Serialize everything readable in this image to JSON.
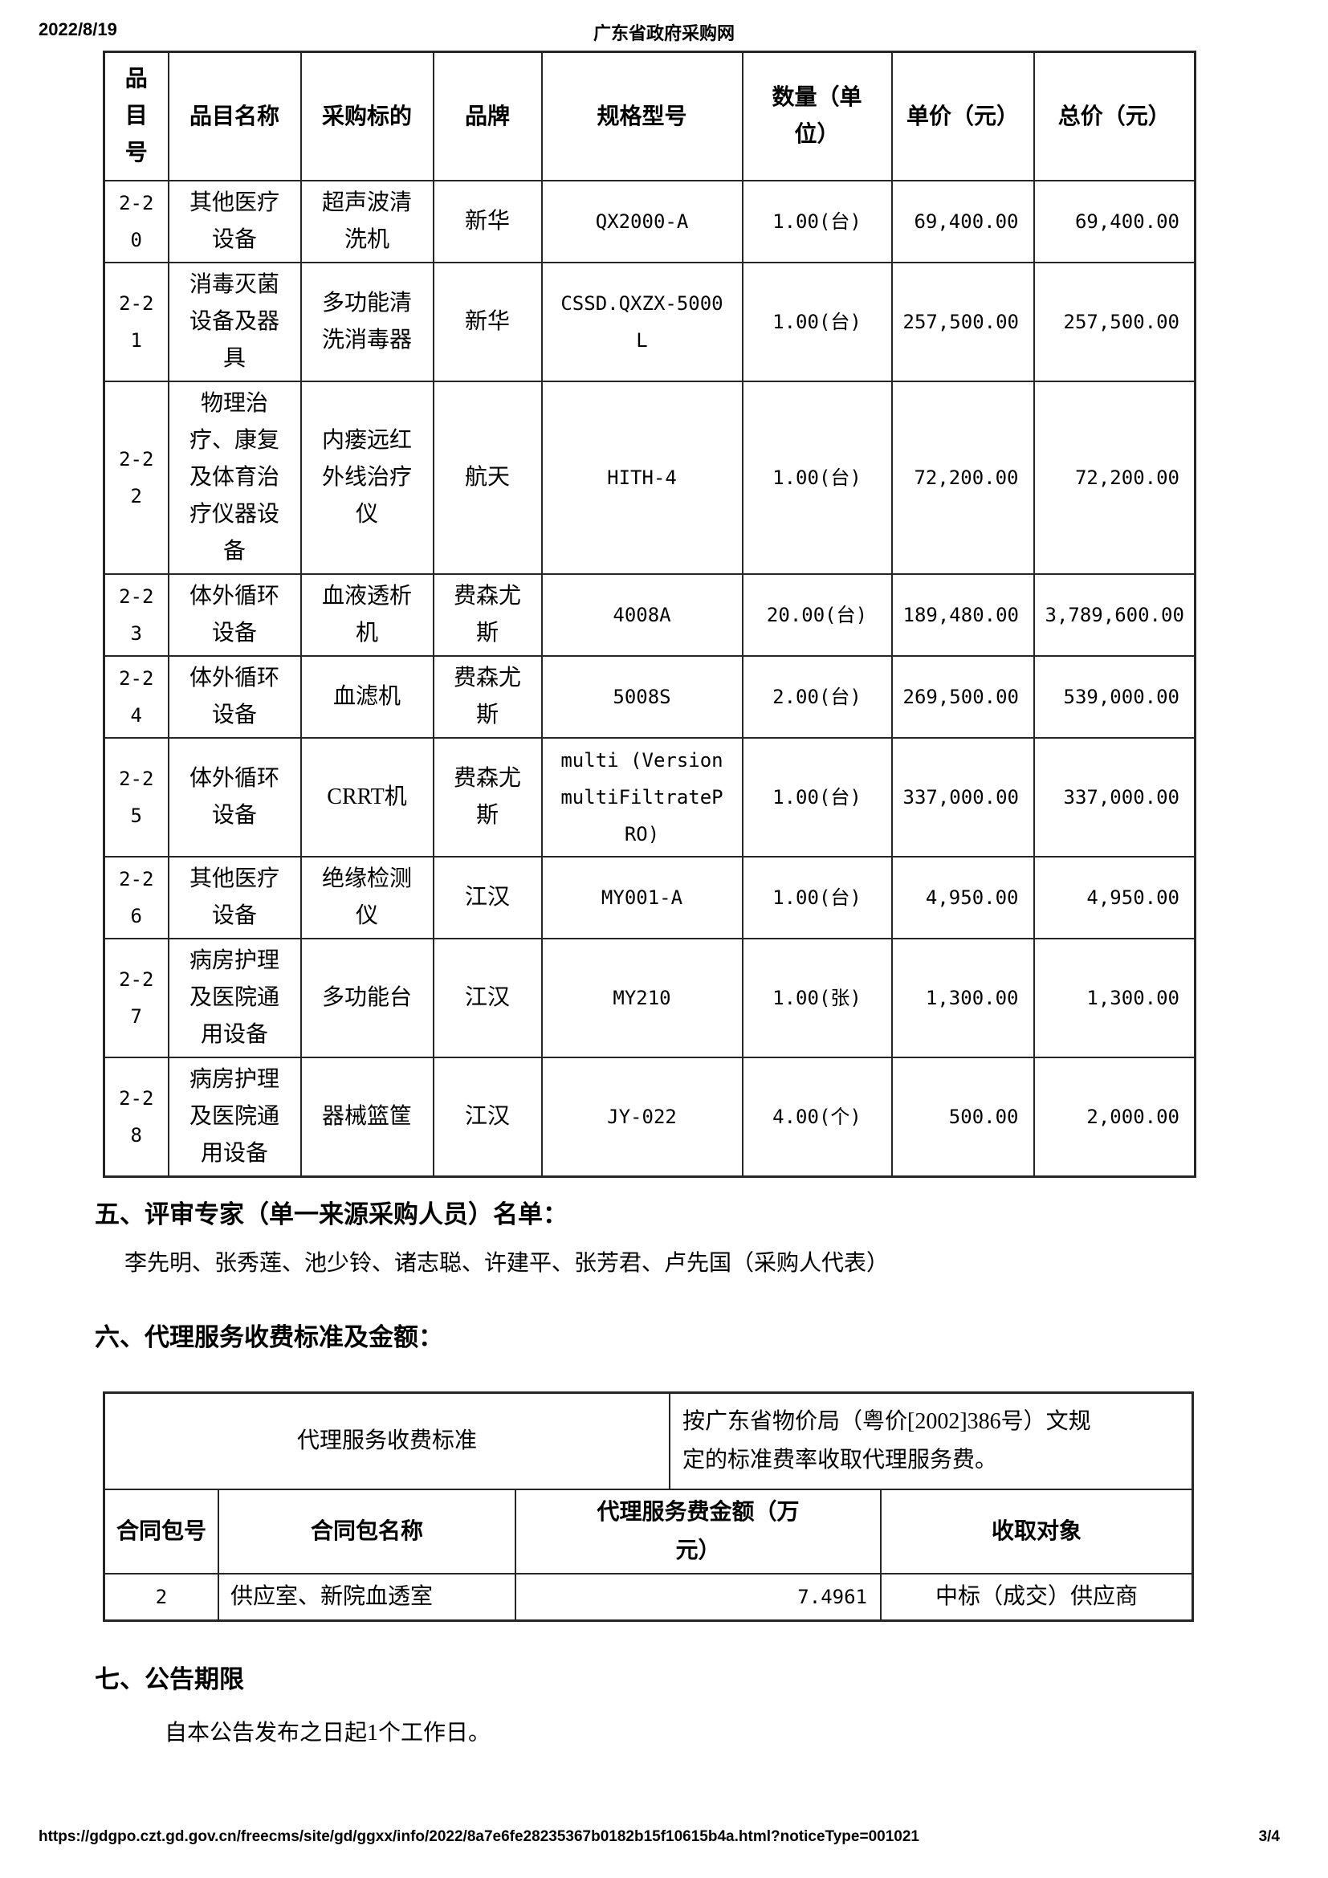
{
  "page_header": {
    "date": "2022/8/19",
    "site_title": "广东省政府采购网"
  },
  "items_table": {
    "headers": [
      "品目号",
      "品目名称",
      "采购标的",
      "品牌",
      "规格型号",
      "数量（单位）",
      "单价（元）",
      "总价（元）"
    ],
    "rows": [
      [
        "2-20",
        "其他医疗设备",
        "超声波清洗机",
        "新华",
        "QX2000-A",
        "1.00(台)",
        "69,400.00",
        "69,400.00"
      ],
      [
        "2-21",
        "消毒灭菌设备及器具",
        "多功能清洗消毒器",
        "新华",
        "CSSD.QXZX-5000L",
        "1.00(台)",
        "257,500.00",
        "257,500.00"
      ],
      [
        "2-22",
        "物理治疗、康复及体育治疗仪器设备",
        "内瘘远红外线治疗仪",
        "航天",
        "HITH-4",
        "1.00(台)",
        "72,200.00",
        "72,200.00"
      ],
      [
        "2-23",
        "体外循环设备",
        "血液透析机",
        "费森尤斯",
        "4008A",
        "20.00(台)",
        "189,480.00",
        "3,789,600.00"
      ],
      [
        "2-24",
        "体外循环设备",
        "血滤机",
        "费森尤斯",
        "5008S",
        "2.00(台)",
        "269,500.00",
        "539,000.00"
      ],
      [
        "2-25",
        "体外循环设备",
        "CRRT机",
        "费森尤斯",
        "multi (Version multiFiltratePRO)",
        "1.00(台)",
        "337,000.00",
        "337,000.00"
      ],
      [
        "2-26",
        "其他医疗设备",
        "绝缘检测仪",
        "江汉",
        "MY001-A",
        "1.00(台)",
        "4,950.00",
        "4,950.00"
      ],
      [
        "2-27",
        "病房护理及医院通用设备",
        "多功能台",
        "江汉",
        "MY210",
        "1.00(张)",
        "1,300.00",
        "1,300.00"
      ],
      [
        "2-28",
        "病房护理及医院通用设备",
        "器械篮筐",
        "江汉",
        "JY-022",
        "4.00(个)",
        "500.00",
        "2,000.00"
      ]
    ]
  },
  "section_five": {
    "heading": "五、评审专家（单一来源采购人员）名单：",
    "names": "李先明、张秀莲、池少铃、诸志聪、许建平、张芳君、卢先国（采购人代表）"
  },
  "section_six": {
    "heading": "六、代理服务收费标准及金额：",
    "fee_table": {
      "standard_label": "代理服务收费标准",
      "standard_text_lines": [
        "按广东省物价局（粤价[2002]386号）文规",
        "定的标准费率收取代理服务费。"
      ],
      "headers": [
        "合同包号",
        "合同包名称",
        "代理服务费金额（万元）",
        "收取对象"
      ],
      "row": [
        "2",
        "供应室、新院血透室",
        "7.4961",
        "中标（成交）供应商"
      ]
    }
  },
  "section_seven": {
    "heading": "七、公告期限",
    "body": "自本公告发布之日起1个工作日。"
  },
  "page_footer": {
    "url": "https://gdgpo.czt.gd.gov.cn/freecms/site/gd/ggxx/info/2022/8a7e6fe28235367b0182b15f10615b4a.html?noticeType=001021",
    "page_number": "3/4"
  }
}
